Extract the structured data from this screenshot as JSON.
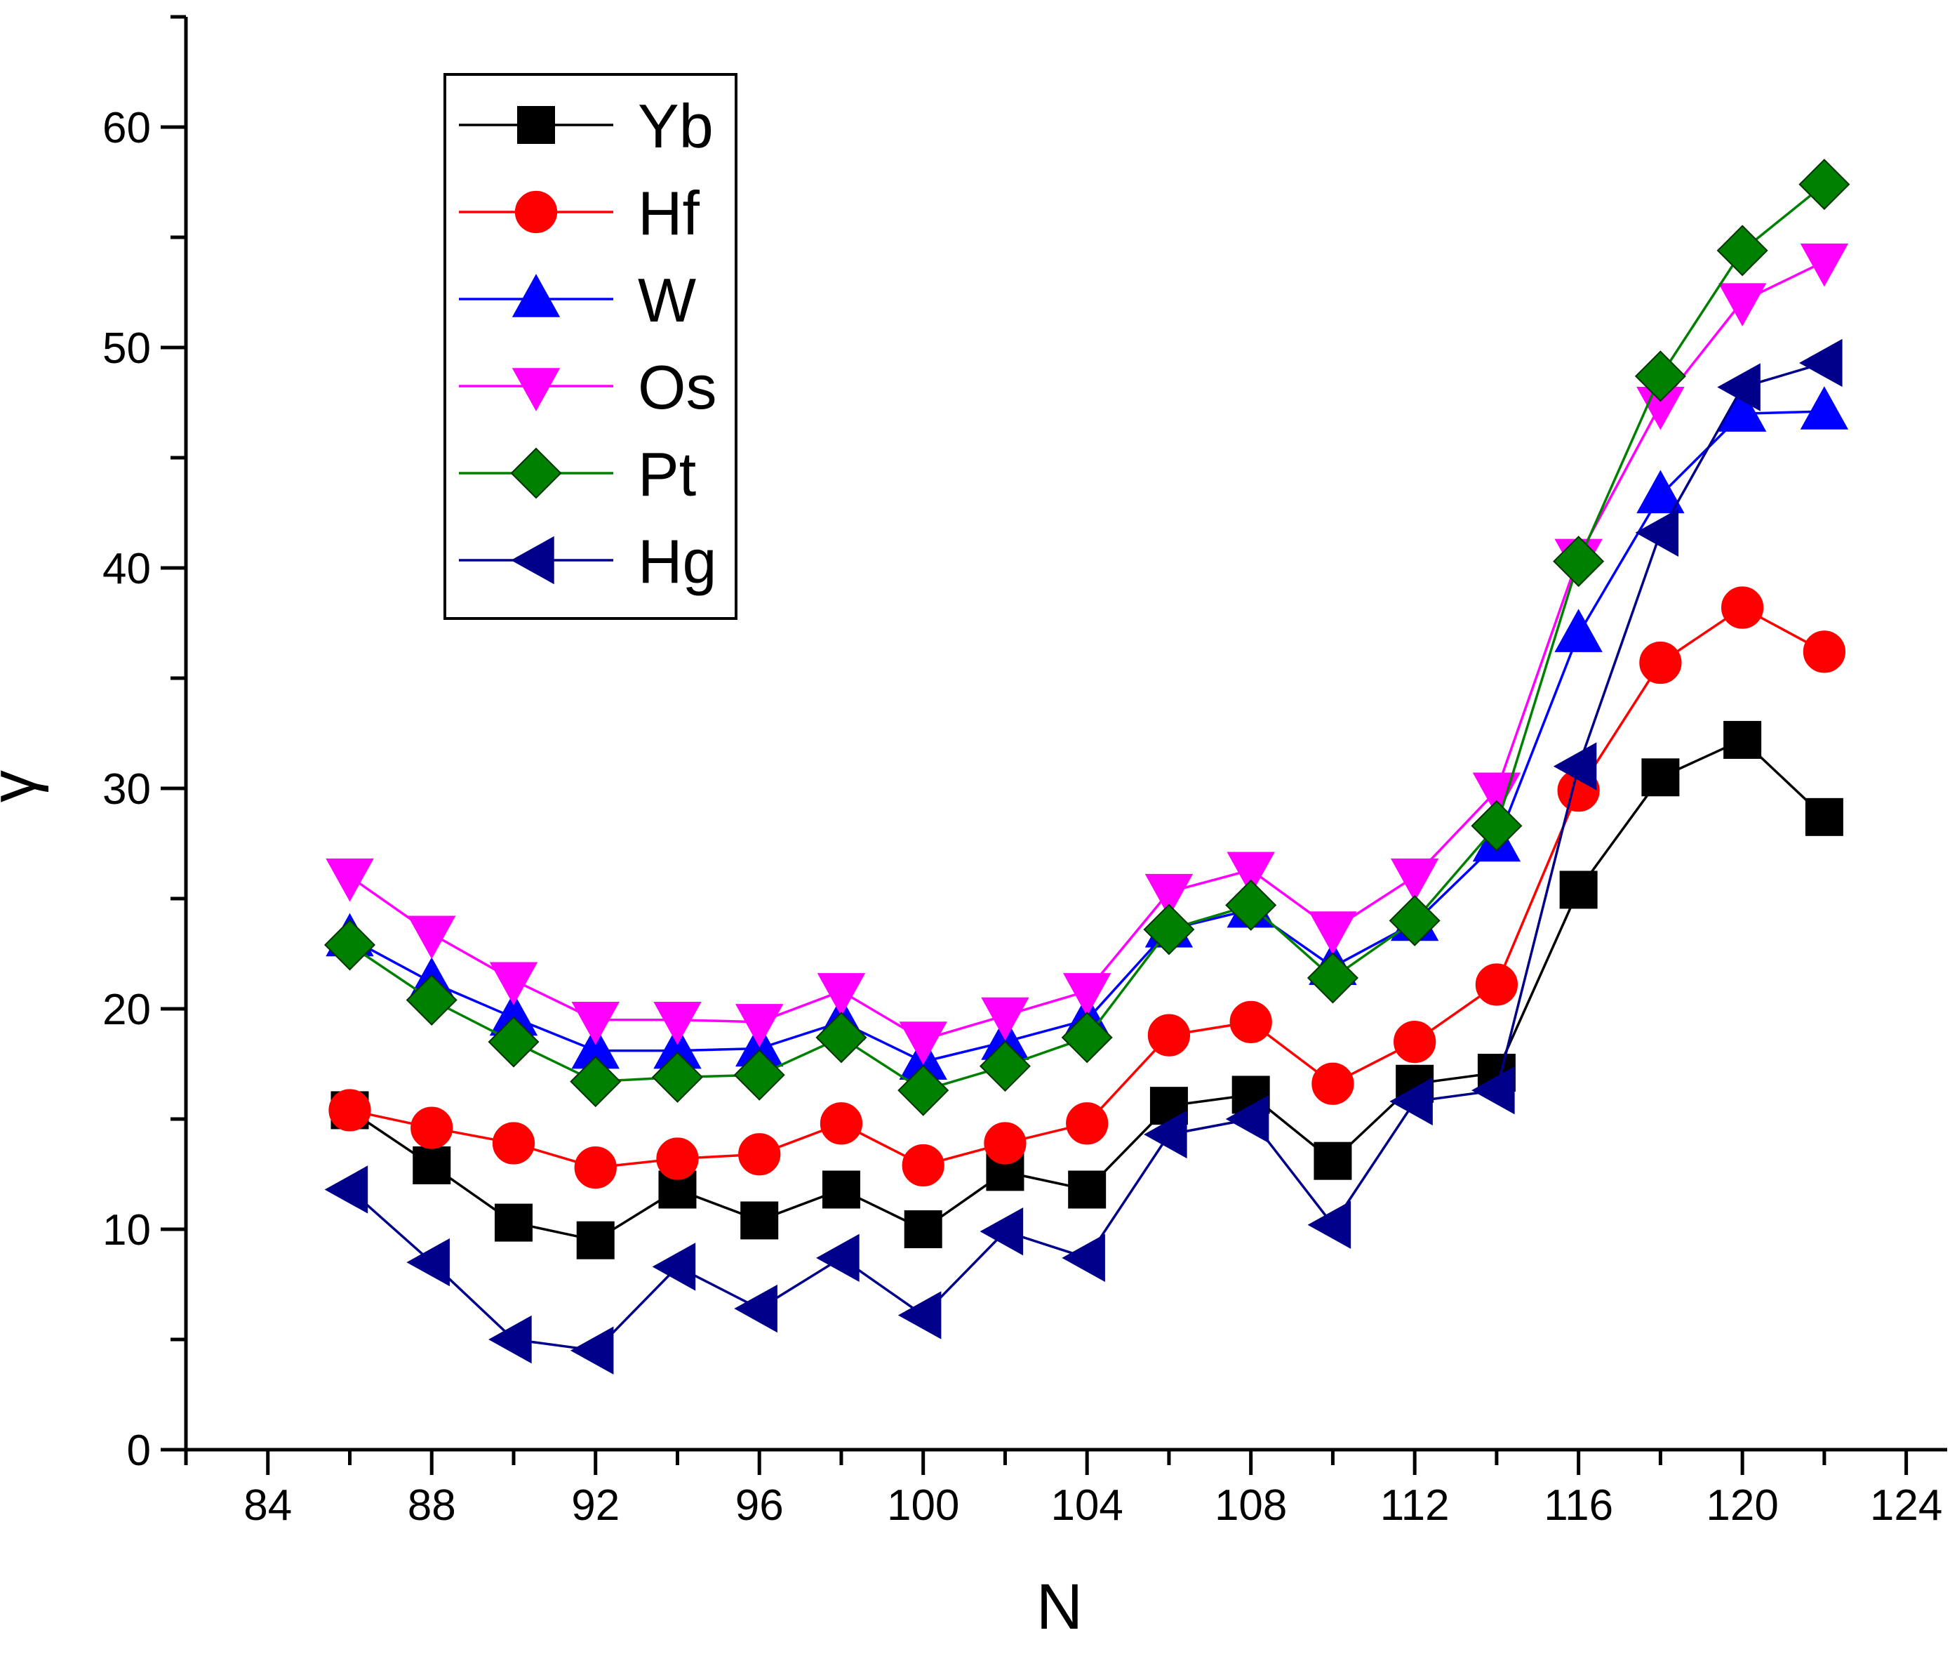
{
  "chart_data": {
    "type": "line",
    "title": "",
    "xlabel": "N",
    "ylabel": "γ",
    "xlim": [
      82,
      125
    ],
    "ylim": [
      0,
      65
    ],
    "xticks": [
      84,
      88,
      92,
      96,
      100,
      104,
      108,
      112,
      116,
      120,
      124
    ],
    "yticks": [
      0,
      10,
      20,
      30,
      40,
      50,
      60
    ],
    "grid": false,
    "legend_position": "top-left",
    "x": [
      86,
      88,
      90,
      92,
      94,
      96,
      98,
      100,
      102,
      104,
      106,
      108,
      110,
      112,
      114,
      116,
      118,
      120,
      122
    ],
    "series": [
      {
        "name": "Yb",
        "color": "#000000",
        "marker": "square",
        "values": [
          15.4,
          12.9,
          10.3,
          9.5,
          11.8,
          10.4,
          11.8,
          10.0,
          12.6,
          11.8,
          15.6,
          16.1,
          13.1,
          16.6,
          17.1,
          25.4,
          30.5,
          32.2,
          28.7
        ]
      },
      {
        "name": "Hf",
        "color": "#ff0000",
        "marker": "circle",
        "values": [
          15.4,
          14.6,
          13.9,
          12.8,
          13.2,
          13.4,
          14.8,
          12.9,
          13.9,
          14.8,
          18.8,
          19.4,
          16.6,
          18.5,
          21.1,
          29.9,
          35.7,
          38.2,
          36.2
        ]
      },
      {
        "name": "W",
        "color": "#0000ff",
        "marker": "triangle-up",
        "values": [
          23.2,
          21.2,
          19.6,
          18.1,
          18.1,
          18.2,
          19.4,
          17.6,
          18.5,
          19.5,
          23.6,
          24.5,
          21.9,
          23.9,
          27.5,
          37.0,
          43.3,
          47.0,
          47.1
        ]
      },
      {
        "name": "Os",
        "color": "#ff00ff",
        "marker": "triangle-down",
        "values": [
          26.0,
          23.4,
          21.3,
          19.5,
          19.5,
          19.4,
          20.8,
          18.6,
          19.7,
          20.8,
          25.3,
          26.3,
          23.6,
          26.0,
          29.9,
          40.5,
          47.4,
          52.1,
          53.9
        ]
      },
      {
        "name": "Pt",
        "color": "#008000",
        "marker": "diamond",
        "values": [
          22.9,
          20.4,
          18.5,
          16.7,
          16.9,
          17.0,
          18.7,
          16.3,
          17.4,
          18.7,
          23.6,
          24.7,
          21.4,
          24.0,
          28.3,
          40.3,
          48.7,
          54.4,
          57.4
        ]
      },
      {
        "name": "Hg",
        "color": "#00008b",
        "marker": "triangle-left",
        "values": [
          11.8,
          8.5,
          5.0,
          4.5,
          8.3,
          6.4,
          8.7,
          6.1,
          9.9,
          8.7,
          14.3,
          15.0,
          10.2,
          15.8,
          16.3,
          31.0,
          41.6,
          48.2,
          49.3
        ]
      }
    ]
  }
}
